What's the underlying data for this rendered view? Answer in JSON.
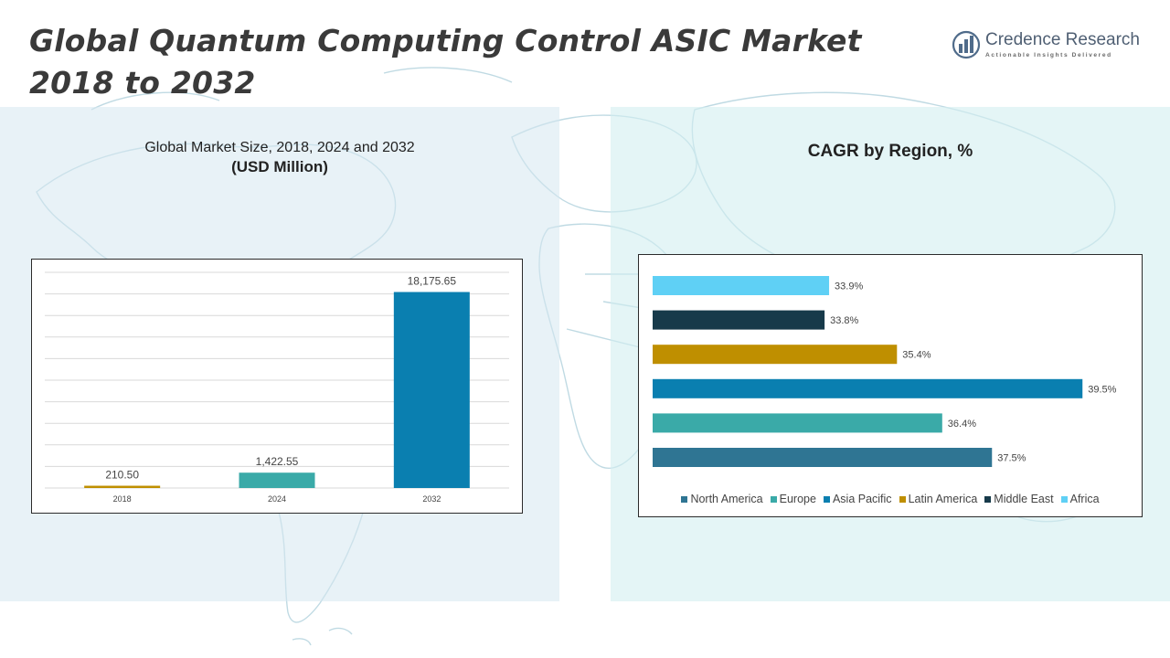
{
  "header": {
    "title_line1": "Global Quantum Computing Control ASIC Market",
    "title_line2": "2018 to 2032"
  },
  "logo": {
    "name": "Credence Research",
    "tagline": "Actionable Insights Delivered",
    "icon": "bar-globe-logo-icon",
    "color": "#4f6b8a"
  },
  "left_panel": {
    "subtitle": "Global Market Size, 2018, 2024 and 2032",
    "unit": "(USD Million)"
  },
  "right_panel": {
    "title": "CAGR by Region, %"
  },
  "chart_data": [
    {
      "type": "bar",
      "categories": [
        "2018",
        "2024",
        "2032"
      ],
      "values": [
        210.5,
        1422.55,
        18175.65
      ],
      "value_labels": [
        "210.50",
        "1,422.55",
        "18,175.65"
      ],
      "colors": [
        "#bf8f00",
        "#3aaaa8",
        "#0a7fb0"
      ],
      "ylim": [
        0,
        20000
      ],
      "grid": true,
      "title": "",
      "xlabel": "",
      "ylabel": ""
    },
    {
      "type": "bar",
      "orientation": "horizontal",
      "categories": [
        "Africa",
        "Middle East",
        "Latin America",
        "Asia Pacific",
        "Europe",
        "North America"
      ],
      "values": [
        33.9,
        33.8,
        35.4,
        39.5,
        36.4,
        37.5
      ],
      "value_labels": [
        "33.9%",
        "33.8%",
        "35.4%",
        "39.5%",
        "36.4%",
        "37.5%"
      ],
      "colors": [
        "#5fd0f5",
        "#173a4a",
        "#bf8f00",
        "#0a7fb0",
        "#3aaaa8",
        "#2f7593"
      ],
      "xlim": [
        30,
        40
      ],
      "legend_position": "bottom",
      "legend": [
        {
          "name": "North America",
          "color": "#2f7593"
        },
        {
          "name": "Europe",
          "color": "#3aaaa8"
        },
        {
          "name": "Asia Pacific",
          "color": "#0a7fb0"
        },
        {
          "name": "Latin America",
          "color": "#bf8f00"
        },
        {
          "name": "Middle East",
          "color": "#173a4a"
        },
        {
          "name": "Africa",
          "color": "#5fd0f5"
        }
      ],
      "grid": false,
      "title": ""
    }
  ]
}
